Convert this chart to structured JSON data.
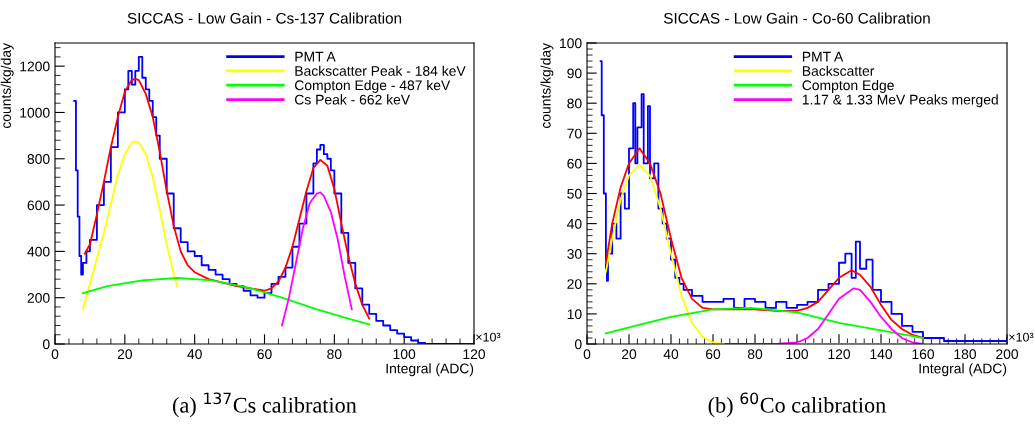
{
  "chart_data": [
    {
      "type": "line",
      "title": "SICCAS - Low Gain - Cs-137 Calibration",
      "xlabel": "Integral (ADC)",
      "ylabel": "counts/kg/day",
      "xlim": [
        0,
        120
      ],
      "xticks": [
        0,
        20,
        40,
        60,
        80,
        100,
        120
      ],
      "ylim": [
        0,
        1300
      ],
      "yticks": [
        0,
        200,
        400,
        600,
        800,
        1000,
        1200
      ],
      "legend": "top right",
      "grid": false,
      "marker": "none",
      "line_style": "solid",
      "annotations": [
        "×10³",
        "(a) $^{137}$Cs calibration"
      ],
      "series": [
        {
          "name": "PMT A",
          "type": "step",
          "color": "#0000ff",
          "x": [
            5.5,
            6,
            6.5,
            7,
            7.5,
            8,
            9,
            10,
            12,
            14,
            16,
            18,
            20,
            21,
            22,
            23,
            24,
            25,
            26,
            27,
            28,
            29,
            30,
            32,
            34,
            36,
            38,
            40,
            42,
            44,
            46,
            48,
            50,
            52,
            54,
            56,
            58,
            60,
            62,
            64,
            66,
            68,
            70,
            72,
            74,
            75,
            76,
            77,
            78,
            79,
            80,
            82,
            84,
            86,
            88,
            90,
            92,
            94,
            96,
            98,
            100,
            102,
            104,
            106,
            120
          ],
          "values": [
            1050,
            750,
            550,
            380,
            300,
            350,
            400,
            450,
            600,
            700,
            850,
            1000,
            1100,
            1180,
            1120,
            1180,
            1240,
            1150,
            1100,
            1050,
            980,
            900,
            800,
            650,
            500,
            440,
            400,
            380,
            340,
            320,
            300,
            280,
            260,
            250,
            230,
            210,
            200,
            220,
            260,
            290,
            330,
            420,
            520,
            650,
            780,
            840,
            860,
            820,
            800,
            750,
            650,
            480,
            350,
            240,
            170,
            130,
            100,
            80,
            60,
            45,
            30,
            15,
            5,
            0,
            0
          ]
        },
        {
          "type": "line",
          "color": "#ff0000",
          "x": [
            8.5,
            10,
            12,
            14,
            16,
            18,
            20,
            22,
            23,
            24,
            26,
            28,
            30,
            32,
            34,
            36,
            38,
            40,
            44,
            48,
            52,
            56,
            60,
            62,
            64,
            66,
            68,
            70,
            72,
            74,
            76,
            78,
            80,
            82,
            84,
            86,
            88,
            90
          ],
          "values": [
            390,
            430,
            560,
            700,
            850,
            980,
            1090,
            1140,
            1145,
            1140,
            1080,
            980,
            830,
            660,
            510,
            400,
            340,
            310,
            280,
            265,
            250,
            240,
            230,
            240,
            270,
            330,
            420,
            540,
            660,
            760,
            795,
            770,
            670,
            520,
            380,
            260,
            170,
            110
          ]
        },
        {
          "name": "Backscatter Peak - 184 keV",
          "type": "line",
          "color": "#ffff00",
          "x": [
            8,
            10,
            14,
            18,
            20,
            22,
            23,
            24,
            26,
            28,
            30,
            32,
            34,
            35
          ],
          "values": [
            150,
            260,
            480,
            730,
            820,
            870,
            875,
            870,
            820,
            720,
            580,
            430,
            300,
            250
          ]
        },
        {
          "name": "Compton Edge - 487 keV",
          "type": "line",
          "color": "#00ff00",
          "x": [
            8,
            15,
            25,
            35,
            45,
            55,
            65,
            75,
            85,
            90
          ],
          "values": [
            220,
            250,
            275,
            285,
            275,
            245,
            200,
            150,
            105,
            85
          ]
        },
        {
          "name": "Cs Peak - 662 keV",
          "type": "line",
          "color": "#ff00ff",
          "x": [
            65,
            67,
            69,
            71,
            73,
            75,
            76,
            77,
            79,
            81,
            83,
            85
          ],
          "values": [
            80,
            200,
            350,
            500,
            610,
            650,
            655,
            640,
            570,
            450,
            290,
            150
          ]
        }
      ]
    },
    {
      "type": "line",
      "title": "SICCAS - Low Gain - Co-60 Calibration",
      "xlabel": "Integral (ADC)",
      "ylabel": "counts/kg/day",
      "xlim": [
        0,
        200
      ],
      "xticks": [
        0,
        20,
        40,
        60,
        80,
        100,
        120,
        140,
        160,
        180,
        200
      ],
      "ylim": [
        0,
        100
      ],
      "yticks": [
        0,
        10,
        20,
        30,
        40,
        50,
        60,
        70,
        80,
        90,
        100
      ],
      "legend": "top right",
      "grid": false,
      "marker": "none",
      "line_style": "solid",
      "annotations": [
        "×10³",
        "(b) $^{60}$Co calibration"
      ],
      "series": [
        {
          "name": "PMT A",
          "type": "step",
          "color": "#0000ff",
          "x": [
            6.5,
            7,
            8,
            9,
            9.5,
            10,
            12,
            14,
            16,
            18,
            20,
            22,
            23,
            24,
            26,
            27,
            29,
            30,
            32,
            34,
            36,
            38,
            40,
            42,
            44,
            46,
            50,
            55,
            60,
            65,
            70,
            75,
            80,
            85,
            90,
            95,
            100,
            105,
            110,
            115,
            120,
            123,
            126,
            128,
            130,
            133,
            136,
            140,
            145,
            150,
            155,
            160,
            165,
            170,
            180,
            190,
            200
          ],
          "values": [
            94,
            76,
            50,
            25,
            21,
            30,
            40,
            35,
            50,
            45,
            65,
            80,
            60,
            72,
            83,
            60,
            79,
            55,
            60,
            45,
            40,
            35,
            28,
            22,
            20,
            18,
            16,
            14,
            14,
            15,
            12,
            15,
            14,
            12,
            14,
            12,
            13,
            14,
            18,
            20,
            27,
            30,
            22,
            34,
            25,
            28,
            18,
            14,
            10,
            6,
            4,
            2,
            2,
            1,
            1,
            1,
            2
          ]
        },
        {
          "type": "line",
          "color": "#ff0000",
          "x": [
            9,
            12,
            16,
            20,
            25,
            30,
            35,
            40,
            45,
            50,
            55,
            60,
            70,
            80,
            90,
            100,
            105,
            110,
            115,
            120,
            126,
            130,
            135,
            140,
            145,
            150,
            155,
            160
          ],
          "values": [
            27,
            40,
            52,
            60,
            65,
            60,
            50,
            35,
            22,
            15,
            12,
            11.5,
            11.5,
            11.5,
            11,
            11,
            12,
            14,
            18,
            22,
            24.5,
            23,
            19,
            13,
            8,
            5,
            3,
            2
          ]
        },
        {
          "name": "Backscatter",
          "type": "line",
          "color": "#ffff00",
          "x": [
            9,
            12,
            16,
            20,
            25,
            30,
            35,
            40,
            45,
            50,
            55,
            60,
            65,
            160
          ],
          "values": [
            24,
            35,
            48,
            56,
            59.5,
            56,
            45,
            30,
            16,
            7,
            2.5,
            0.5,
            0,
            0
          ]
        },
        {
          "name": "Compton Edge",
          "type": "line",
          "color": "#00ff00",
          "x": [
            9,
            20,
            40,
            60,
            78,
            100,
            120,
            140,
            160
          ],
          "values": [
            3.5,
            5.5,
            9,
            11.5,
            12,
            10.5,
            7,
            4.5,
            2
          ]
        },
        {
          "name": "1.17 & 1.33 MeV Peaks merged",
          "type": "line",
          "color": "#ff00ff",
          "x": [
            66,
            90,
            100,
            105,
            110,
            115,
            120,
            127,
            130,
            135,
            140,
            145,
            150,
            155,
            160
          ],
          "values": [
            0,
            0,
            0.5,
            2,
            5,
            10,
            15,
            18.5,
            18,
            14,
            9,
            5,
            2,
            0.5,
            0
          ]
        }
      ]
    }
  ]
}
